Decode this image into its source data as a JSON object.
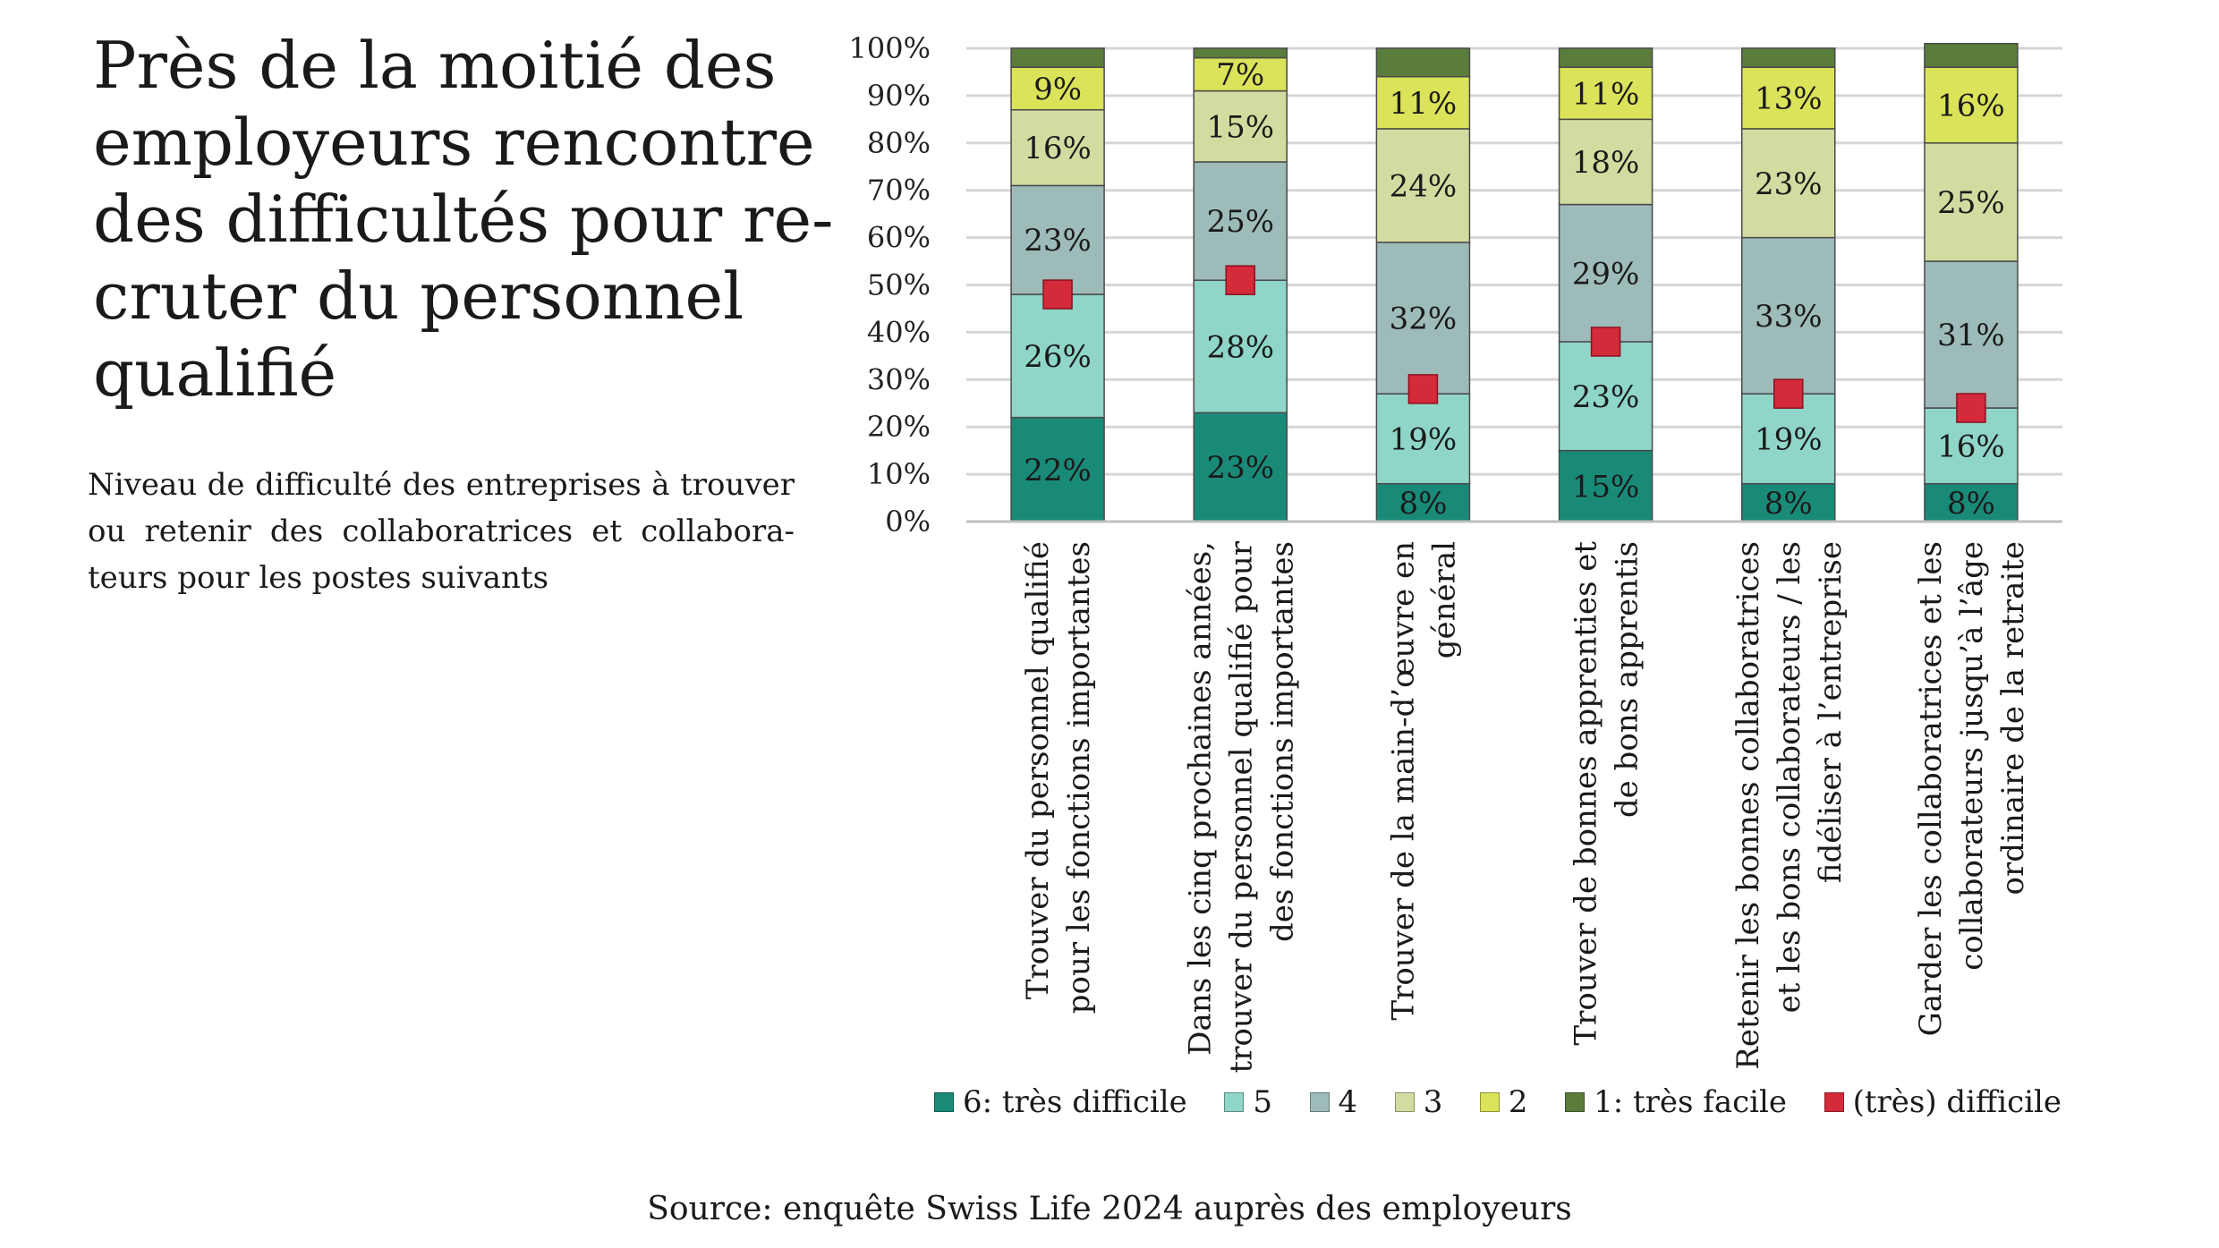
{
  "title_lines": [
    "Près de la moitié des",
    "employeurs rencontre",
    "des difficultés pour re-",
    "cruter du personnel",
    "qualifié"
  ],
  "subtitle_lines": [
    "Niveau de difficulté des entreprises à trouver",
    "ou retenir des collaboratrices et collabora-",
    "teurs pour les postes suivants"
  ],
  "source": "Source: enquête Swiss Life 2024 auprès des employeurs",
  "chart_data": {
    "type": "bar",
    "stacked": true,
    "ylim": [
      0,
      100
    ],
    "y_ticks": [
      "0%",
      "10%",
      "20%",
      "30%",
      "40%",
      "50%",
      "60%",
      "70%",
      "80%",
      "90%",
      "100%"
    ],
    "categories": [
      [
        "Trouver du personnel qualifié",
        "pour les fonctions importantes"
      ],
      [
        "Dans les cinq prochaines années,",
        "trouver du personnel qualifié pour",
        "des fonctions importantes"
      ],
      [
        "Trouver de la main-d’œuvre en",
        "général"
      ],
      [
        "Trouver de bonnes apprenties et",
        "de bons apprentis"
      ],
      [
        "Retenir les bonnes collaboratrices",
        "et les bons collaborateurs / les",
        "fidéliser à l’entreprise"
      ],
      [
        "Garder les collaboratrices et les",
        "collaborateurs jusqu’à l’âge",
        "ordinaire de la retraite"
      ]
    ],
    "series": [
      {
        "name": "6: très difficile",
        "color": "#1a8a78",
        "values": [
          22,
          23,
          8,
          15,
          8,
          8
        ],
        "labels": [
          "22%",
          "23%",
          "8%",
          "15%",
          "8%",
          "8%"
        ]
      },
      {
        "name": "5",
        "color": "#8fd6c8",
        "values": [
          26,
          28,
          19,
          23,
          19,
          16
        ],
        "labels": [
          "26%",
          "28%",
          "19%",
          "23%",
          "19%",
          "16%"
        ]
      },
      {
        "name": "4",
        "color": "#9dbbb9",
        "values": [
          23,
          25,
          32,
          29,
          33,
          31
        ],
        "labels": [
          "23%",
          "25%",
          "32%",
          "29%",
          "33%",
          "31%"
        ]
      },
      {
        "name": "3",
        "color": "#d3dca0",
        "values": [
          16,
          15,
          24,
          18,
          23,
          25
        ],
        "labels": [
          "16%",
          "15%",
          "24%",
          "18%",
          "23%",
          "25%"
        ]
      },
      {
        "name": "2",
        "color": "#dbe35a",
        "values": [
          9,
          7,
          11,
          11,
          13,
          16
        ],
        "labels": [
          "9%",
          "7%",
          "11%",
          "11%",
          "13%",
          "16%"
        ]
      },
      {
        "name": "1: très facile",
        "color": "#5a7d3c",
        "values": [
          4,
          2,
          6,
          4,
          4,
          5
        ],
        "labels": []
      }
    ],
    "markers": {
      "name": "(très) difficile",
      "color": "#d42a3a",
      "values": [
        48,
        51,
        28,
        38,
        27,
        24
      ]
    }
  }
}
